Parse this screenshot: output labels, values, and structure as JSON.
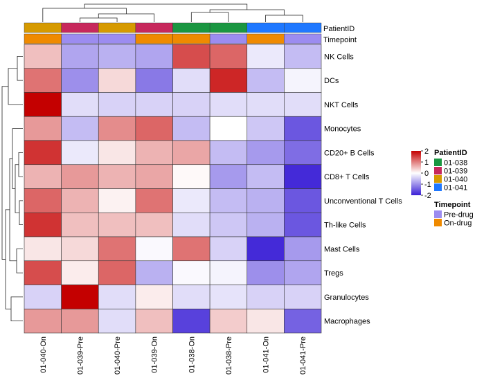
{
  "chart_data": {
    "type": "heatmap",
    "columns": [
      "01-040-On",
      "01-039-Pre",
      "01-040-Pre",
      "01-039-On",
      "01-038-On",
      "01-038-Pre",
      "01-041-On",
      "01-041-Pre"
    ],
    "rows": [
      "NK Cells",
      "DCs",
      "NKT Cells",
      "Monocytes",
      "CD20+ B Cells",
      "CD8+ T Cells",
      "Unconventional T Cells",
      "Th-like Cells",
      "Mast Cells",
      "Tregs",
      "Granulocytes",
      "Macrophages"
    ],
    "values": [
      [
        0.5,
        -0.8,
        -0.7,
        -0.8,
        1.4,
        1.2,
        -0.2,
        -0.6
      ],
      [
        1.1,
        -1.0,
        0.3,
        -1.2,
        -0.3,
        1.7,
        -0.6,
        -0.1
      ],
      [
        2.0,
        -0.3,
        -0.4,
        -0.4,
        -0.4,
        -0.3,
        -0.3,
        -0.3
      ],
      [
        0.8,
        -0.6,
        0.9,
        1.2,
        -0.6,
        0.0,
        -0.5,
        -1.5
      ],
      [
        1.6,
        -0.2,
        0.2,
        0.6,
        0.7,
        -0.6,
        -0.9,
        -1.3
      ],
      [
        0.6,
        0.8,
        0.6,
        0.7,
        0.05,
        -0.9,
        -0.6,
        -1.9
      ],
      [
        1.2,
        0.6,
        0.1,
        1.1,
        -0.2,
        -0.6,
        -0.7,
        -1.5
      ],
      [
        1.6,
        0.5,
        0.5,
        0.5,
        -0.3,
        -0.5,
        -0.7,
        -1.5
      ],
      [
        0.2,
        0.3,
        1.1,
        -0.05,
        1.1,
        -0.4,
        -1.9,
        -0.9
      ],
      [
        1.4,
        0.15,
        1.2,
        -0.7,
        -0.05,
        -0.1,
        -1.0,
        -0.8
      ],
      [
        -0.4,
        2.0,
        -0.3,
        0.15,
        -0.3,
        -0.25,
        -0.4,
        -0.4
      ],
      [
        0.8,
        0.8,
        -0.3,
        0.5,
        -1.7,
        0.4,
        0.2,
        -1.4
      ]
    ],
    "annotations": {
      "PatientID": [
        "01-040",
        "01-039",
        "01-040",
        "01-039",
        "01-038",
        "01-038",
        "01-041",
        "01-041"
      ],
      "Timepoint": [
        "On-drug",
        "Pre-drug",
        "Pre-drug",
        "On-drug",
        "On-drug",
        "Pre-drug",
        "On-drug",
        "Pre-drug"
      ]
    },
    "annotation_labels": [
      "PatientID",
      "Timepoint"
    ],
    "color_scale": {
      "ticks": [
        2,
        1,
        0,
        -1,
        -2
      ],
      "min": -2,
      "max": 2,
      "low": "#3a1fd6",
      "mid": "#ffffff",
      "high": "#c40000"
    },
    "legends": {
      "PatientID": {
        "title": "PatientID",
        "items": [
          {
            "label": "01-038",
            "color": "#1a9641"
          },
          {
            "label": "01-039",
            "color": "#c7285c"
          },
          {
            "label": "01-040",
            "color": "#d69a00"
          },
          {
            "label": "01-041",
            "color": "#1f78ff"
          }
        ]
      },
      "Timepoint": {
        "title": "Timepoint",
        "items": [
          {
            "label": "Pre-drug",
            "color": "#9c8cf0"
          },
          {
            "label": "On-drug",
            "color": "#ef8a00"
          }
        ]
      }
    },
    "row_dendrogram": true,
    "column_dendrogram": true,
    "legend_placement": "right"
  }
}
